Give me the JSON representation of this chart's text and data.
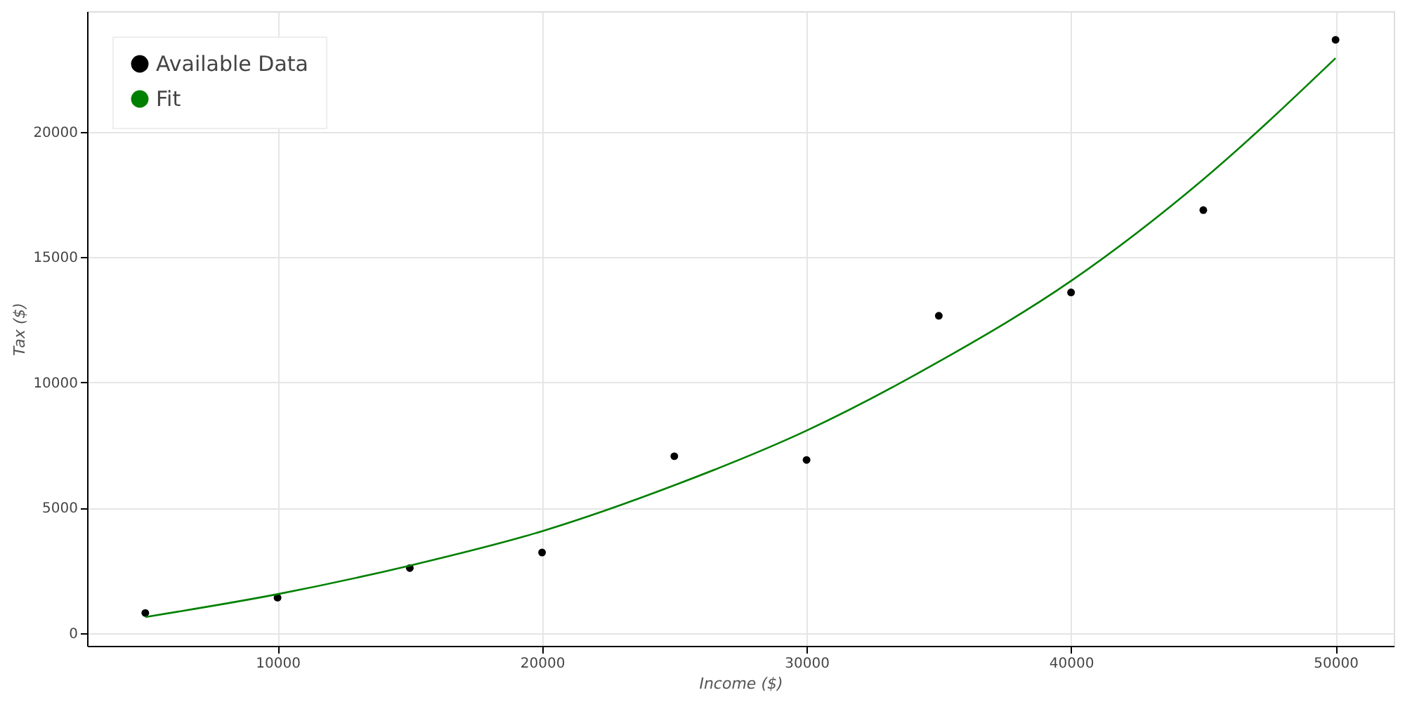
{
  "chart_data": {
    "type": "scatter",
    "xlabel": "Income ($)",
    "ylabel": "Tax ($)",
    "xlim": [
      2800,
      52200
    ],
    "ylim": [
      -500,
      24800
    ],
    "xticks": [
      10000,
      20000,
      30000,
      40000,
      50000
    ],
    "yticks": [
      0,
      5000,
      10000,
      15000,
      20000
    ],
    "grid": true,
    "legend": "top left",
    "series": [
      {
        "name": "Available Data",
        "marker": "circle",
        "color": "#000000",
        "x": [
          5000,
          10000,
          15000,
          20000,
          25000,
          30000,
          35000,
          40000,
          45000,
          50000
        ],
        "values": [
          810,
          1420,
          2600,
          3220,
          7060,
          6910,
          12660,
          13590,
          16870,
          23660
        ]
      },
      {
        "name": "Fit",
        "type": "line",
        "line_style": "solid",
        "color": "#008000",
        "x": [
          5000,
          10000,
          15000,
          20000,
          25000,
          30000,
          35000,
          40000,
          45000,
          50000
        ],
        "values": [
          650,
          1560,
          2700,
          4070,
          5900,
          8080,
          10830,
          14050,
          18100,
          22930
        ]
      }
    ]
  }
}
